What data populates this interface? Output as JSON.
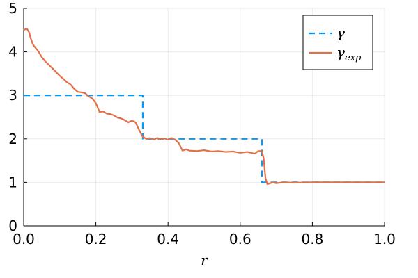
{
  "chart_data": {
    "type": "line",
    "title": "",
    "xlabel": "r",
    "ylabel": "",
    "xlim": [
      0,
      1
    ],
    "ylim": [
      0,
      5
    ],
    "xticks": [
      0.0,
      0.2,
      0.4,
      0.6,
      0.8,
      1.0
    ],
    "xtick_labels": [
      "0.0",
      "0.2",
      "0.4",
      "0.6",
      "0.8",
      "1.0"
    ],
    "yticks": [
      0,
      1,
      2,
      3,
      4,
      5
    ],
    "ytick_labels": [
      "0",
      "1",
      "2",
      "3",
      "4",
      "5"
    ],
    "grid": true,
    "legend_position": "top-right",
    "series": [
      {
        "name": "γ",
        "color": "#009af9",
        "style": "dashed",
        "x": [
          0.0,
          0.33,
          0.33,
          0.66,
          0.66,
          1.0
        ],
        "y": [
          3.0,
          3.0,
          2.0,
          2.0,
          1.0,
          1.0
        ]
      },
      {
        "name": "γ_exp",
        "legend_base": "γ",
        "legend_sub": "exp",
        "color": "#e26f46",
        "style": "solid",
        "x": [
          0.0,
          0.005,
          0.01,
          0.015,
          0.02,
          0.025,
          0.03,
          0.04,
          0.05,
          0.06,
          0.07,
          0.08,
          0.09,
          0.1,
          0.11,
          0.12,
          0.13,
          0.14,
          0.15,
          0.16,
          0.17,
          0.18,
          0.19,
          0.2,
          0.21,
          0.22,
          0.23,
          0.24,
          0.25,
          0.26,
          0.27,
          0.28,
          0.29,
          0.3,
          0.31,
          0.32,
          0.33,
          0.34,
          0.35,
          0.36,
          0.37,
          0.38,
          0.39,
          0.4,
          0.41,
          0.42,
          0.43,
          0.44,
          0.45,
          0.46,
          0.48,
          0.5,
          0.52,
          0.54,
          0.56,
          0.58,
          0.6,
          0.62,
          0.64,
          0.65,
          0.66,
          0.665,
          0.67,
          0.675,
          0.68,
          0.69,
          0.7,
          0.72,
          0.75,
          0.8,
          0.85,
          0.9,
          0.95,
          1.0
        ],
        "y": [
          4.5,
          4.52,
          4.52,
          4.45,
          4.3,
          4.18,
          4.12,
          4.02,
          3.88,
          3.78,
          3.7,
          3.62,
          3.53,
          3.45,
          3.38,
          3.3,
          3.25,
          3.15,
          3.08,
          3.07,
          3.05,
          2.98,
          2.93,
          2.82,
          2.62,
          2.63,
          2.58,
          2.57,
          2.54,
          2.49,
          2.47,
          2.43,
          2.38,
          2.42,
          2.38,
          2.2,
          2.05,
          2.0,
          2.02,
          1.98,
          2.02,
          1.99,
          2.01,
          1.98,
          2.02,
          1.98,
          1.9,
          1.73,
          1.76,
          1.73,
          1.72,
          1.74,
          1.71,
          1.72,
          1.7,
          1.71,
          1.68,
          1.7,
          1.66,
          1.72,
          1.72,
          1.55,
          1.1,
          0.96,
          0.97,
          1.0,
          0.98,
          1.0,
          0.99,
          1.0,
          1.0,
          1.0,
          1.0,
          1.0
        ]
      }
    ]
  }
}
